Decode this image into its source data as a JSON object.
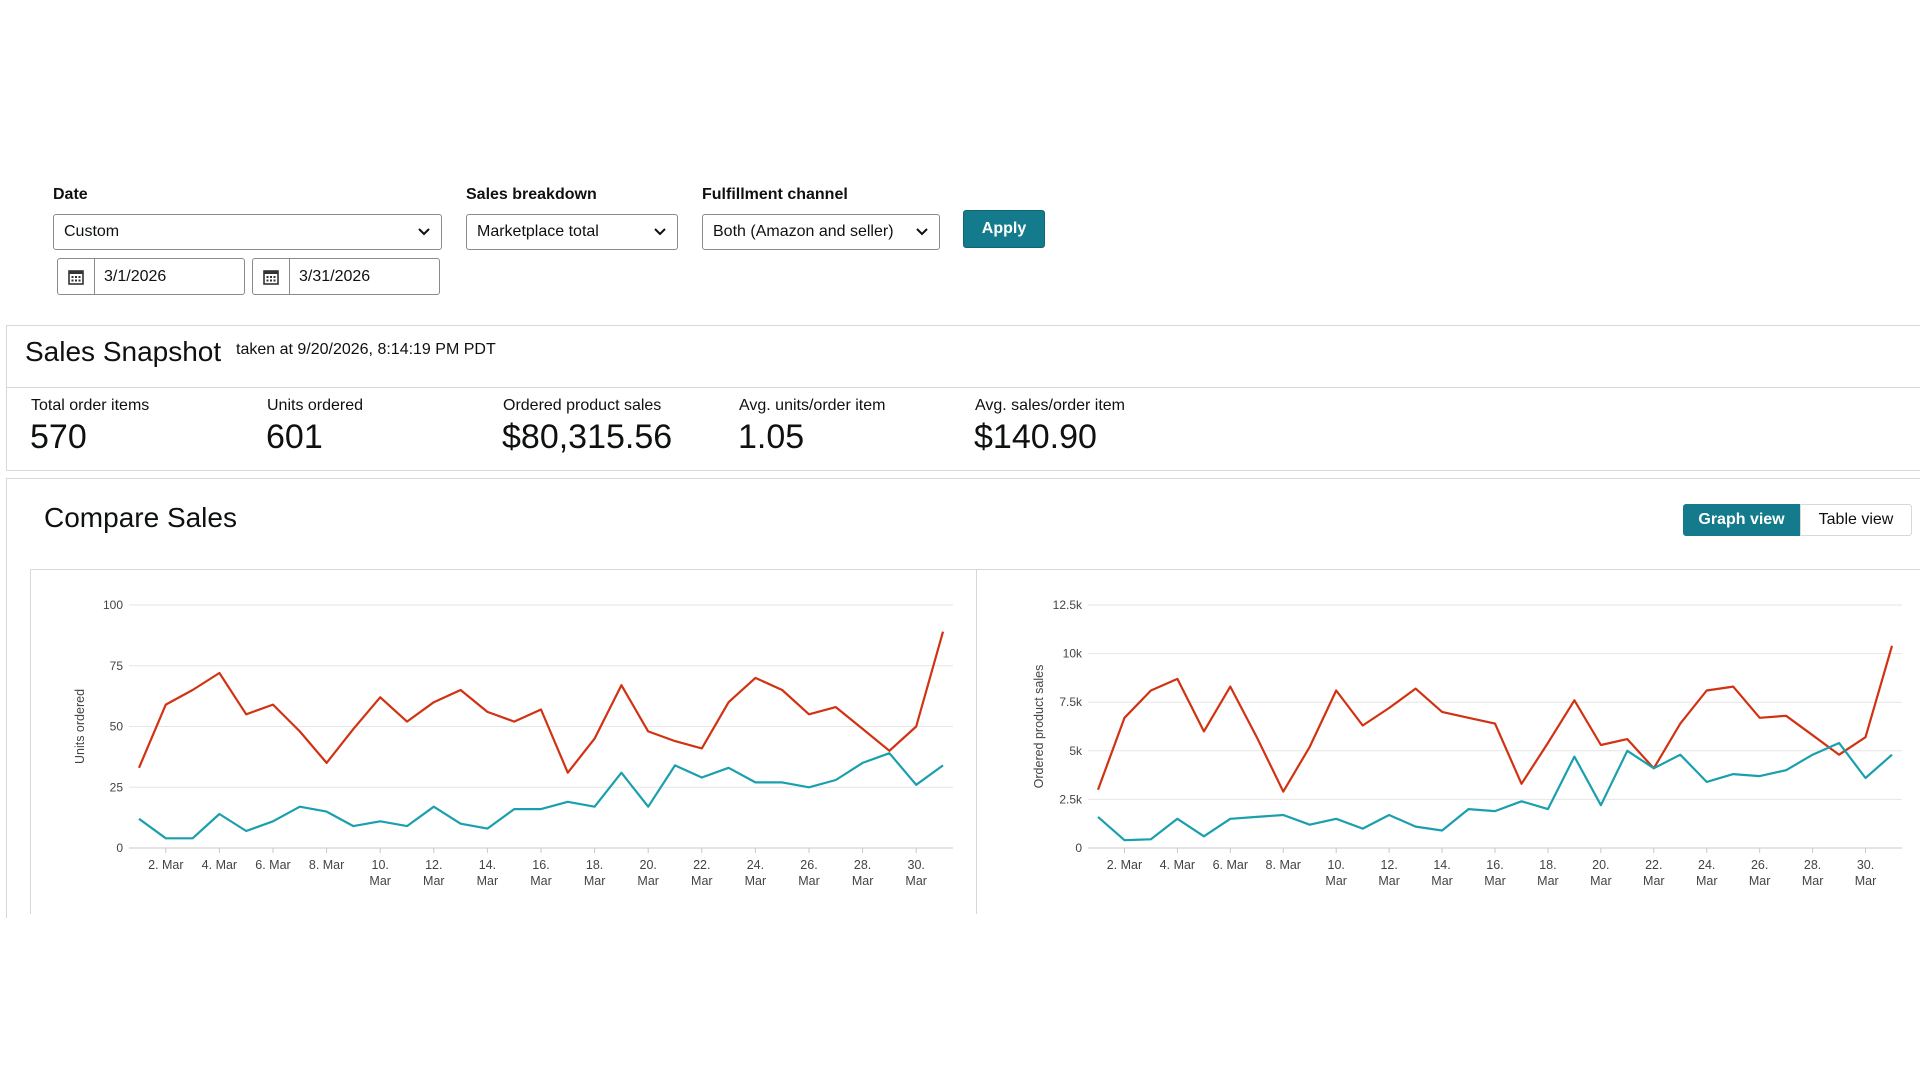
{
  "filters": {
    "date": {
      "label": "Date",
      "value": "Custom",
      "start": "3/1/2026",
      "end": "3/31/2026"
    },
    "breakdown": {
      "label": "Sales breakdown",
      "value": "Marketplace total"
    },
    "fulfillment": {
      "label": "Fulfillment channel",
      "value": "Both (Amazon and seller)"
    },
    "apply_label": "Apply"
  },
  "snapshot": {
    "title": "Sales Snapshot",
    "taken_at": "taken at 9/20/2026, 8:14:19 PM PDT",
    "metrics": [
      {
        "label": "Total order items",
        "value": "570"
      },
      {
        "label": "Units ordered",
        "value": "601"
      },
      {
        "label": "Ordered product sales",
        "value": "$80,315.56"
      },
      {
        "label": "Avg. units/order item",
        "value": "1.05"
      },
      {
        "label": "Avg. sales/order item",
        "value": "$140.90"
      }
    ]
  },
  "compare": {
    "title": "Compare Sales",
    "views": [
      "Graph view",
      "Table view"
    ],
    "active_view": "Graph view"
  },
  "colors": {
    "accent": "#137b8c",
    "series_current": "#d13212",
    "series_compare": "#1a9fae"
  },
  "chart_data": [
    {
      "type": "line",
      "ylabel": "Units ordered",
      "xlabel": "",
      "ylim": [
        0,
        100
      ],
      "yticks": [
        "0",
        "25",
        "50",
        "75",
        "100"
      ],
      "ytick_values": [
        0,
        25,
        50,
        75,
        100
      ],
      "x": [
        1,
        2,
        3,
        4,
        5,
        6,
        7,
        8,
        9,
        10,
        11,
        12,
        13,
        14,
        15,
        16,
        17,
        18,
        19,
        20,
        21,
        22,
        23,
        24,
        25,
        26,
        27,
        28,
        29,
        30,
        31
      ],
      "xtick_days": [
        2,
        4,
        6,
        8,
        10,
        12,
        14,
        16,
        18,
        20,
        22,
        24,
        26,
        28,
        30
      ],
      "xtick_labels": [
        [
          "2. Mar"
        ],
        [
          "4. Mar"
        ],
        [
          "6. Mar"
        ],
        [
          "8. Mar"
        ],
        [
          "10.",
          "Mar"
        ],
        [
          "12.",
          "Mar"
        ],
        [
          "14.",
          "Mar"
        ],
        [
          "16.",
          "Mar"
        ],
        [
          "18.",
          "Mar"
        ],
        [
          "20.",
          "Mar"
        ],
        [
          "22.",
          "Mar"
        ],
        [
          "24.",
          "Mar"
        ],
        [
          "26.",
          "Mar"
        ],
        [
          "28.",
          "Mar"
        ],
        [
          "30.",
          "Mar"
        ]
      ],
      "grid": true,
      "series": [
        {
          "values": [
            33,
            59,
            65,
            72,
            55,
            59,
            48,
            35,
            49,
            62,
            52,
            60,
            65,
            56,
            52,
            57,
            31,
            45,
            67,
            48,
            44,
            41,
            60,
            70,
            65,
            55,
            58,
            49,
            40,
            50,
            89
          ]
        },
        {
          "values": [
            12,
            4,
            4,
            14,
            7,
            11,
            17,
            15,
            9,
            11,
            9,
            17,
            10,
            8,
            16,
            16,
            19,
            17,
            31,
            17,
            34,
            29,
            33,
            27,
            27,
            25,
            28,
            35,
            39,
            26,
            34
          ]
        }
      ]
    },
    {
      "type": "line",
      "ylabel": "Ordered product sales",
      "xlabel": "",
      "ylim": [
        0,
        12500
      ],
      "yticks": [
        "0",
        "2.5k",
        "5k",
        "7.5k",
        "10k",
        "12.5k"
      ],
      "ytick_values": [
        0,
        2500,
        5000,
        7500,
        10000,
        12500
      ],
      "x": [
        1,
        2,
        3,
        4,
        5,
        6,
        7,
        8,
        9,
        10,
        11,
        12,
        13,
        14,
        15,
        16,
        17,
        18,
        19,
        20,
        21,
        22,
        23,
        24,
        25,
        26,
        27,
        28,
        29,
        30,
        31
      ],
      "xtick_days": [
        2,
        4,
        6,
        8,
        10,
        12,
        14,
        16,
        18,
        20,
        22,
        24,
        26,
        28,
        30
      ],
      "xtick_labels": [
        [
          "2. Mar"
        ],
        [
          "4. Mar"
        ],
        [
          "6. Mar"
        ],
        [
          "8. Mar"
        ],
        [
          "10.",
          "Mar"
        ],
        [
          "12.",
          "Mar"
        ],
        [
          "14.",
          "Mar"
        ],
        [
          "16.",
          "Mar"
        ],
        [
          "18.",
          "Mar"
        ],
        [
          "20.",
          "Mar"
        ],
        [
          "22.",
          "Mar"
        ],
        [
          "24.",
          "Mar"
        ],
        [
          "26.",
          "Mar"
        ],
        [
          "28.",
          "Mar"
        ],
        [
          "30.",
          "Mar"
        ]
      ],
      "grid": true,
      "series": [
        {
          "values": [
            3000,
            6700,
            8100,
            8700,
            6000,
            8300,
            5700,
            2900,
            5200,
            8100,
            6300,
            7200,
            8200,
            7000,
            6700,
            6400,
            3300,
            5400,
            7600,
            5300,
            5600,
            4100,
            6400,
            8100,
            8300,
            6700,
            6800,
            5800,
            4800,
            5700,
            10400
          ]
        },
        {
          "values": [
            1600,
            400,
            450,
            1500,
            600,
            1500,
            1600,
            1700,
            1200,
            1500,
            1000,
            1700,
            1100,
            900,
            2000,
            1900,
            2400,
            2000,
            4700,
            2200,
            5000,
            4100,
            4800,
            3400,
            3800,
            3700,
            4000,
            4800,
            5400,
            3600,
            4800
          ]
        }
      ]
    }
  ]
}
